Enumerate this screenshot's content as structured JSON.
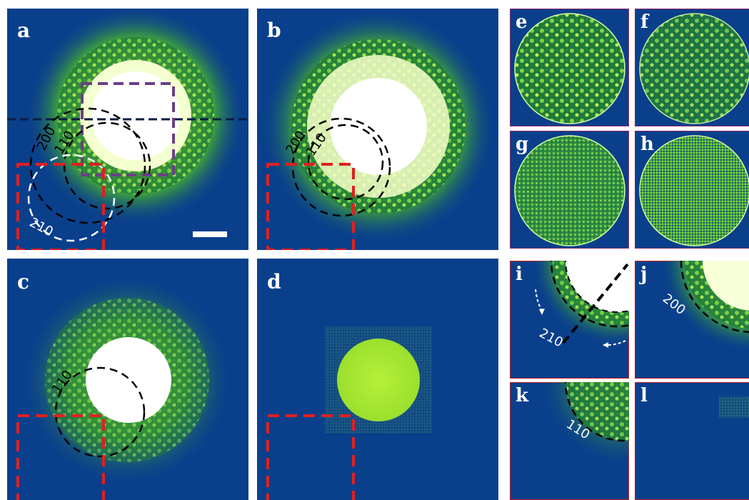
{
  "panels": {
    "a": {
      "label": "a",
      "rings": [
        "200",
        "110",
        "210"
      ]
    },
    "b": {
      "label": "b",
      "rings": [
        "200",
        "110"
      ]
    },
    "c": {
      "label": "c",
      "rings": [
        "110"
      ]
    },
    "d": {
      "label": "d"
    },
    "e": {
      "label": "e"
    },
    "f": {
      "label": "f"
    },
    "g": {
      "label": "g"
    },
    "h": {
      "label": "h"
    },
    "i": {
      "label": "i",
      "rings": [
        "210"
      ]
    },
    "j": {
      "label": "j",
      "rings": [
        "200"
      ]
    },
    "k": {
      "label": "k",
      "rings": [
        "110"
      ]
    },
    "l": {
      "label": "l"
    }
  },
  "colors": {
    "background": "#0a3f8c",
    "speckle_green": "#4fc93a",
    "speckle_yellow": "#e9ff6a",
    "saturated_white": "#ffffff",
    "red_box": "#e02020",
    "purple_box": "#6b3f86",
    "panel_border_purple": "#8a2a6a",
    "panel_border_red": "#c41e1e"
  }
}
